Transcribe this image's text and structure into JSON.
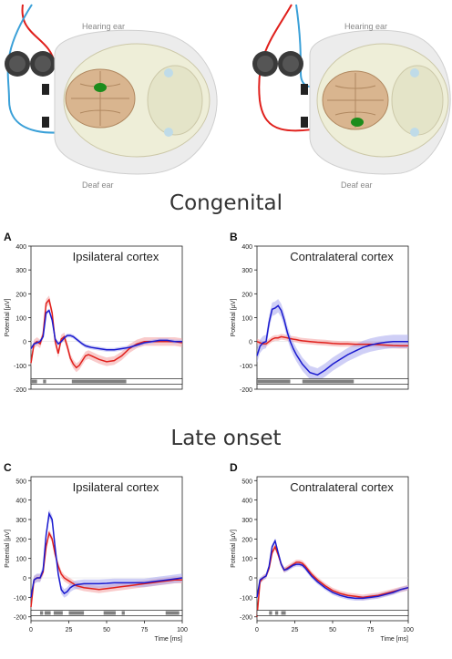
{
  "illustrations": [
    {
      "hearing_label": "Hearing ear",
      "deaf_label": "Deaf ear",
      "active_side": "ipsilateral"
    },
    {
      "hearing_label": "Hearing ear",
      "deaf_label": "Deaf ear",
      "active_side": "contralateral"
    }
  ],
  "sections": {
    "top": "Congenital",
    "bottom": "Late onset"
  },
  "colors": {
    "red": "#e0201c",
    "blue": "#1a1acf",
    "red_band": "#f4a0a0",
    "blue_band": "#a8a8ee",
    "gray_bar": "#808080"
  },
  "chart_data": [
    {
      "id": "A",
      "letter": "A",
      "title": "Ipsilateral cortex",
      "type": "line",
      "ylabel": "Potential [µV]",
      "xlabel": "",
      "yticks": [
        "400",
        "300",
        "200",
        "100",
        "0",
        "-100",
        "-200"
      ],
      "xticks": [],
      "ylim": [
        -200,
        400
      ],
      "xlim": [
        0,
        100
      ],
      "series": [
        {
          "color": "red",
          "band": 18,
          "x": [
            0,
            2,
            4,
            6,
            8,
            10,
            12,
            14,
            16,
            18,
            20,
            22,
            24,
            26,
            28,
            30,
            32,
            34,
            36,
            38,
            40,
            45,
            50,
            55,
            60,
            65,
            70,
            75,
            80,
            85,
            90,
            95,
            100
          ],
          "y": [
            -90,
            -10,
            0,
            -10,
            30,
            160,
            175,
            120,
            0,
            -50,
            10,
            20,
            -20,
            -70,
            -95,
            -110,
            -100,
            -80,
            -60,
            -55,
            -60,
            -75,
            -85,
            -80,
            -60,
            -30,
            -10,
            0,
            0,
            0,
            0,
            0,
            -5
          ]
        },
        {
          "color": "blue",
          "band": 8,
          "x": [
            0,
            2,
            4,
            6,
            8,
            10,
            12,
            14,
            16,
            18,
            20,
            22,
            24,
            26,
            28,
            30,
            32,
            34,
            36,
            38,
            40,
            45,
            50,
            55,
            60,
            65,
            70,
            75,
            80,
            85,
            90,
            95,
            100
          ],
          "y": [
            -30,
            -10,
            -5,
            0,
            20,
            120,
            130,
            90,
            10,
            -10,
            0,
            15,
            25,
            25,
            20,
            10,
            0,
            -10,
            -18,
            -22,
            -25,
            -30,
            -35,
            -35,
            -30,
            -25,
            -15,
            -5,
            0,
            5,
            5,
            0,
            0
          ]
        }
      ],
      "sig_bars": [
        [
          0,
          4
        ],
        [
          8,
          10
        ],
        [
          27,
          63
        ]
      ]
    },
    {
      "id": "B",
      "letter": "B",
      "title": "Contralateral cortex",
      "type": "line",
      "ylabel": "Potential [µV]",
      "xlabel": "",
      "yticks": [
        "400",
        "300",
        "200",
        "100",
        "0",
        "-100",
        "-200"
      ],
      "xticks": [],
      "ylim": [
        -200,
        400
      ],
      "xlim": [
        0,
        100
      ],
      "series": [
        {
          "color": "red",
          "band": 12,
          "x": [
            0,
            2,
            4,
            6,
            8,
            10,
            12,
            14,
            16,
            18,
            20,
            22,
            24,
            26,
            28,
            30,
            35,
            40,
            45,
            50,
            55,
            60,
            65,
            70,
            75,
            80,
            85,
            90,
            95,
            100
          ],
          "y": [
            0,
            -5,
            -10,
            -10,
            0,
            10,
            15,
            15,
            20,
            18,
            15,
            12,
            10,
            8,
            5,
            3,
            0,
            -3,
            -5,
            -8,
            -10,
            -10,
            -12,
            -12,
            -12,
            -13,
            -15,
            -17,
            -18,
            -18
          ]
        },
        {
          "color": "blue",
          "band": 28,
          "x": [
            0,
            2,
            4,
            6,
            8,
            10,
            12,
            14,
            16,
            18,
            20,
            22,
            24,
            26,
            28,
            30,
            35,
            40,
            45,
            50,
            55,
            60,
            65,
            70,
            75,
            80,
            85,
            90,
            95,
            100
          ],
          "y": [
            -60,
            -20,
            -5,
            0,
            80,
            135,
            140,
            150,
            130,
            90,
            40,
            0,
            -30,
            -55,
            -75,
            -95,
            -130,
            -140,
            -120,
            -95,
            -75,
            -55,
            -40,
            -25,
            -15,
            -8,
            -3,
            0,
            0,
            0
          ]
        }
      ],
      "sig_bars": [
        [
          0,
          22
        ],
        [
          30,
          64
        ]
      ]
    },
    {
      "id": "C",
      "letter": "C",
      "title": "Ipsilateral cortex",
      "type": "line",
      "ylabel": "Potential [µV]",
      "xlabel": "Time [ms]",
      "yticks": [
        "500",
        "400",
        "300",
        "200",
        "100",
        "0",
        "-100",
        "-200"
      ],
      "xticks": [
        "0",
        "25",
        "50",
        "75",
        "100"
      ],
      "ylim": [
        -220,
        520
      ],
      "xlim": [
        0,
        100
      ],
      "series": [
        {
          "color": "red",
          "band": 18,
          "x": [
            0,
            2,
            4,
            6,
            8,
            10,
            12,
            14,
            16,
            18,
            20,
            22,
            24,
            26,
            28,
            30,
            35,
            40,
            45,
            50,
            55,
            60,
            65,
            70,
            75,
            80,
            85,
            90,
            95,
            100
          ],
          "y": [
            -150,
            -10,
            0,
            0,
            30,
            160,
            230,
            200,
            120,
            60,
            20,
            0,
            -10,
            -20,
            -30,
            -40,
            -50,
            -55,
            -60,
            -55,
            -50,
            -45,
            -40,
            -35,
            -30,
            -25,
            -20,
            -15,
            -10,
            -10
          ]
        },
        {
          "color": "blue",
          "band": 22,
          "x": [
            0,
            2,
            4,
            6,
            8,
            10,
            12,
            14,
            16,
            18,
            20,
            22,
            24,
            26,
            28,
            30,
            35,
            40,
            45,
            50,
            55,
            60,
            65,
            70,
            75,
            80,
            85,
            90,
            95,
            100
          ],
          "y": [
            -100,
            -10,
            0,
            0,
            40,
            220,
            330,
            300,
            150,
            20,
            -60,
            -80,
            -70,
            -50,
            -40,
            -35,
            -30,
            -30,
            -30,
            -28,
            -25,
            -25,
            -25,
            -25,
            -25,
            -20,
            -15,
            -10,
            -5,
            0
          ]
        }
      ],
      "sig_bars": [
        [
          6,
          8
        ],
        [
          9,
          13
        ],
        [
          15,
          21
        ],
        [
          25,
          35
        ],
        [
          48,
          56
        ],
        [
          60,
          62
        ],
        [
          89,
          98
        ]
      ]
    },
    {
      "id": "D",
      "letter": "D",
      "title": "Contralateral cortex",
      "type": "line",
      "ylabel": "Potential [µV]",
      "xlabel": "Time [ms]",
      "yticks": [
        "500",
        "400",
        "300",
        "200",
        "100",
        "0",
        "-100",
        "-200"
      ],
      "xticks": [
        "0",
        "25",
        "50",
        "75",
        "100"
      ],
      "ylim": [
        -220,
        520
      ],
      "xlim": [
        0,
        100
      ],
      "series": [
        {
          "color": "red",
          "band": 14,
          "x": [
            0,
            2,
            4,
            6,
            8,
            10,
            12,
            14,
            16,
            18,
            20,
            22,
            24,
            26,
            28,
            30,
            32,
            34,
            36,
            38,
            40,
            45,
            50,
            55,
            60,
            65,
            70,
            75,
            80,
            85,
            90,
            95,
            100
          ],
          "y": [
            -200,
            -20,
            0,
            10,
            50,
            130,
            160,
            120,
            70,
            40,
            50,
            60,
            70,
            80,
            80,
            75,
            60,
            40,
            20,
            5,
            -10,
            -40,
            -65,
            -80,
            -90,
            -95,
            -100,
            -95,
            -90,
            -80,
            -70,
            -60,
            -50
          ]
        },
        {
          "color": "blue",
          "band": 12,
          "x": [
            0,
            2,
            4,
            6,
            8,
            10,
            12,
            14,
            16,
            18,
            20,
            22,
            24,
            26,
            28,
            30,
            32,
            34,
            36,
            38,
            40,
            45,
            50,
            55,
            60,
            65,
            70,
            75,
            80,
            85,
            90,
            95,
            100
          ],
          "y": [
            -100,
            -10,
            0,
            10,
            60,
            160,
            190,
            130,
            70,
            40,
            45,
            55,
            65,
            70,
            70,
            65,
            50,
            30,
            10,
            -5,
            -20,
            -50,
            -75,
            -90,
            -100,
            -105,
            -105,
            -100,
            -95,
            -85,
            -75,
            -60,
            -50
          ]
        }
      ],
      "sig_bars": [
        [
          8,
          10
        ],
        [
          12,
          14
        ],
        [
          16,
          19
        ]
      ]
    }
  ]
}
